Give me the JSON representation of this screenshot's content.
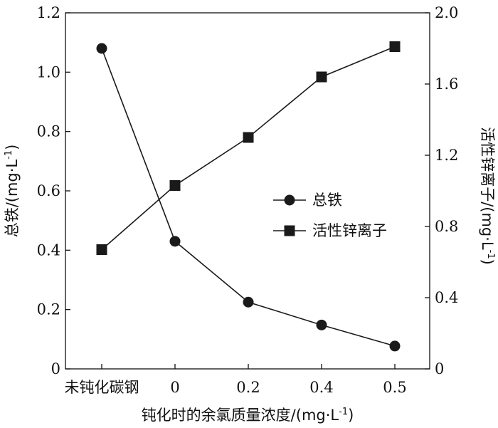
{
  "chart_data": {
    "type": "line",
    "categories": [
      "未钝化碳钢",
      "0",
      "0.2",
      "0.4",
      "0.5"
    ],
    "xlabel": "钝化时的余氯质量浓度/(mg·L⁻¹)",
    "xlabel_parts": {
      "main": "钝化时的余氯质量浓度/(mg·L",
      "sup": "-1",
      "end": ")"
    },
    "ylabel_left": "总铁/(mg·L⁻¹)",
    "ylabel_left_parts": {
      "main": "总铁/(mg·L",
      "sup": "-1",
      "end": ")"
    },
    "ylabel_right": "活性锌离子/(mg·L⁻¹)",
    "ylabel_right_parts": {
      "main": "活性锌离子/(mg·L",
      "sup": "-1",
      "end": ")"
    },
    "ylim_left": [
      0,
      1.2
    ],
    "ylim_right": [
      0,
      2.0
    ],
    "yticks_left": [
      "0",
      "0.2",
      "0.4",
      "0.6",
      "0.8",
      "1.0",
      "1.2"
    ],
    "yticks_right": [
      "0",
      "0.4",
      "0.8",
      "1.2",
      "1.6",
      "2.0"
    ],
    "series": [
      {
        "name": "总铁",
        "axis": "left",
        "marker": "circle",
        "values": [
          1.08,
          0.43,
          0.225,
          0.148,
          0.077
        ]
      },
      {
        "name": "活性锌离子",
        "axis": "right",
        "marker": "square",
        "values": [
          0.67,
          1.03,
          1.3,
          1.64,
          1.81
        ]
      }
    ],
    "legend_position": "center-right",
    "grid": false,
    "colors": {
      "line": "#1a1a1a",
      "marker": "#1a1a1a"
    }
  }
}
